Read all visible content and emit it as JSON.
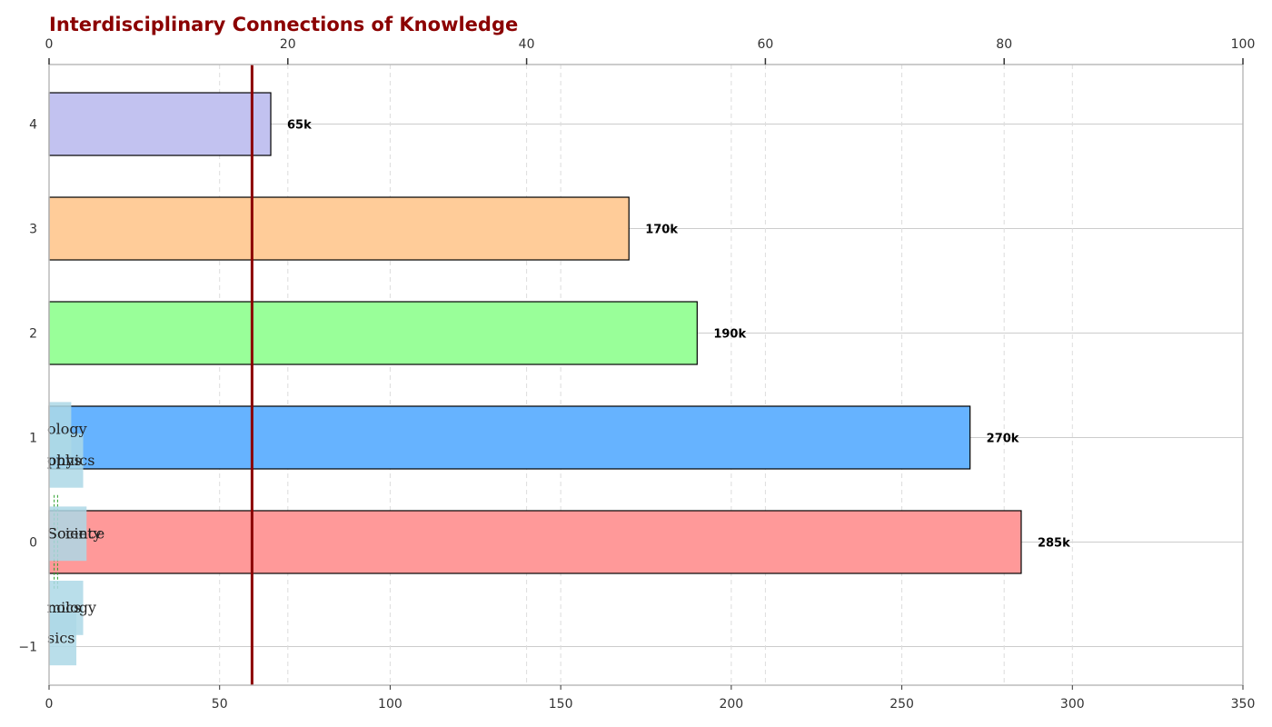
{
  "chart_data": {
    "type": "bar",
    "orientation": "horizontal",
    "title": "Interdisciplinary Connections of Knowledge",
    "xlabel": "",
    "ylabel": "",
    "xlim": [
      0,
      350
    ],
    "ylim": [
      -1.37,
      4.57
    ],
    "x_ticks": [
      0,
      50,
      100,
      150,
      200,
      250,
      300,
      350
    ],
    "y_ticks": [
      -1,
      0,
      1,
      2,
      3,
      4
    ],
    "y_tick_labels": [
      "−1",
      "0",
      "1",
      "2",
      "3",
      "4"
    ],
    "secondary_x_axis": {
      "range": [
        0,
        100
      ],
      "ticks": [
        0,
        20,
        40,
        60,
        80,
        100
      ]
    },
    "bars": [
      {
        "y": 0,
        "value": 285,
        "label": "285k",
        "color": "#ff9999"
      },
      {
        "y": 1,
        "value": 270,
        "label": "270k",
        "color": "#66b3ff"
      },
      {
        "y": 2,
        "value": 190,
        "label": "190k",
        "color": "#99ff99"
      },
      {
        "y": 3,
        "value": 170,
        "label": "170k",
        "color": "#ffcc99"
      },
      {
        "y": 4,
        "value": 65,
        "label": "65k",
        "color": "#c2c2f0"
      }
    ],
    "reference_line": {
      "x": 59.5,
      "color": "#8b0000"
    },
    "annotations": [
      {
        "text": "ology",
        "x": 0,
        "y": 1.08,
        "box_w": 6.5
      },
      {
        "text": "phys",
        "x": 0,
        "y": 0.78,
        "box_w": 10
      },
      {
        "text": "ophics",
        "x": 0,
        "y": 0.78,
        "box_w": 0
      },
      {
        "text": "Society",
        "x": 0,
        "y": 0.08,
        "box_w": 11
      },
      {
        "text": "Science",
        "x": 0,
        "y": 0.08,
        "box_w": 0
      },
      {
        "text": "nology",
        "x": 0,
        "y": -0.63,
        "box_w": 10
      },
      {
        "text": "mics",
        "x": 0,
        "y": -0.63,
        "box_w": 0
      },
      {
        "text": "sics",
        "x": 0,
        "y": -0.92,
        "box_w": 8
      }
    ],
    "connectors_x": [
      1.5,
      2.5
    ],
    "grid": true,
    "colors": {
      "title": "#8b0000",
      "annotation_box": "#add8e6",
      "connector": "#2ca02c",
      "grid": "#cccccc",
      "axis": "#bbbbbb"
    }
  }
}
